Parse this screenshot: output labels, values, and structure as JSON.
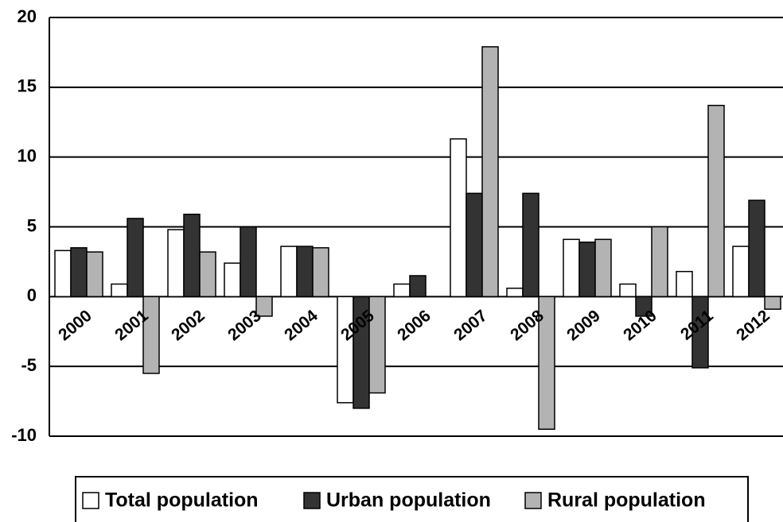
{
  "chart_data": {
    "type": "bar",
    "categories": [
      "2000",
      "2001",
      "2002",
      "2003",
      "2004",
      "2005",
      "2006",
      "2007",
      "2008",
      "2009",
      "2010",
      "2011",
      "2012"
    ],
    "series": [
      {
        "name": "Total population",
        "color": "#ffffff",
        "values": [
          3.3,
          0.9,
          4.8,
          2.4,
          3.6,
          -7.6,
          0.9,
          11.3,
          0.6,
          4.1,
          0.9,
          1.8,
          3.6
        ]
      },
      {
        "name": "Urban population",
        "color": "#333333",
        "values": [
          3.5,
          5.6,
          5.9,
          5.0,
          3.6,
          -8.0,
          1.5,
          7.4,
          7.4,
          3.9,
          -1.4,
          -5.1,
          6.9
        ]
      },
      {
        "name": "Rural population",
        "color": "#b3b3b3",
        "values": [
          3.2,
          -5.5,
          3.2,
          -1.4,
          3.5,
          -6.9,
          0,
          17.9,
          -9.5,
          4.1,
          5.0,
          13.7,
          -0.9
        ]
      }
    ],
    "ylim": [
      -10,
      20
    ],
    "yticks": [
      20,
      15,
      10,
      5,
      0,
      -5,
      -10
    ],
    "grid": true,
    "legend": "bottom"
  }
}
